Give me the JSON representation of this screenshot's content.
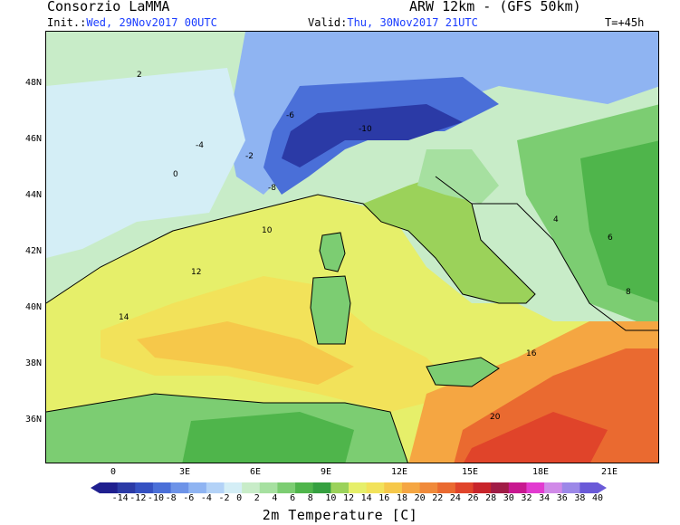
{
  "header": {
    "title": "Consorzio LaMMA",
    "model": "ARW 12km - (GFS 50km)",
    "init_label": "Init.:",
    "init_value": "Wed, 29Nov2017 00UTC",
    "valid_label": "Valid:",
    "valid_value": "Thu, 30Nov2017 21UTC",
    "step": "T=+45h"
  },
  "axes": {
    "lat_labels": [
      "48N",
      "46N",
      "44N",
      "42N",
      "40N",
      "38N",
      "36N"
    ],
    "lon_labels": [
      "0",
      "3E",
      "6E",
      "9E",
      "12E",
      "15E",
      "18E",
      "21E"
    ]
  },
  "colorbar": {
    "labels": [
      "-14",
      "-12",
      "-10",
      "-8",
      "-6",
      "-4",
      "-2",
      "0",
      "2",
      "4",
      "6",
      "8",
      "10",
      "12",
      "14",
      "16",
      "18",
      "20",
      "22",
      "24",
      "26",
      "28",
      "30",
      "32",
      "34",
      "36",
      "38",
      "40"
    ],
    "colors": [
      "#1f1f8f",
      "#2b3aa6",
      "#3551c2",
      "#4a6fd8",
      "#6d93e8",
      "#8fb4f2",
      "#b3d2f7",
      "#d4eef6",
      "#c8ecc8",
      "#a6e0a0",
      "#7ccd72",
      "#4fb54b",
      "#35a040",
      "#9bd25a",
      "#e6ef6a",
      "#f2e25a",
      "#f6c84a",
      "#f5a642",
      "#f08a3a",
      "#ea6a30",
      "#e0442a",
      "#c8242a",
      "#a01c46",
      "#c81890",
      "#e23ad0",
      "#d08ae8",
      "#9c88e8",
      "#6a5ad8"
    ],
    "caption": "2m Temperature [C]"
  },
  "map": {
    "contour_labels": [
      "2",
      "0",
      "-2",
      "-4",
      "-6",
      "-8",
      "-10",
      "4",
      "6",
      "8",
      "10",
      "12",
      "14",
      "16",
      "20"
    ]
  }
}
